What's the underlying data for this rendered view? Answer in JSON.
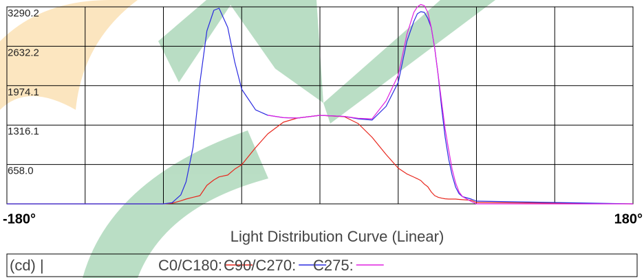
{
  "chart_data": {
    "type": "line",
    "title": "Light Distribution Curve (Linear)",
    "unit_label": "(cd) |",
    "x": [
      -180,
      -90,
      -85,
      -80,
      -77,
      -73,
      -69,
      -65,
      -61,
      -58,
      -53,
      -49,
      -45,
      -37,
      -30,
      -21,
      -13,
      0,
      14,
      22,
      30,
      38,
      45,
      50,
      54,
      56,
      58,
      60,
      62,
      64,
      66,
      68,
      70,
      72,
      74,
      76,
      78,
      80,
      82,
      87,
      90,
      180
    ],
    "series": [
      {
        "name": "C0/C180:",
        "color": "#e8261c",
        "values": [
          0,
          0,
          10,
          50,
          80,
          110,
          138,
          310,
          400,
          450,
          481,
          580,
          653,
          940,
          1169,
          1364,
          1433,
          1479,
          1456,
          1341,
          1112,
          825,
          596,
          500,
          447,
          420,
          390,
          330,
          287,
          200,
          138,
          110,
          95,
          85,
          80,
          80,
          80,
          75,
          70,
          60,
          23,
          0
        ]
      },
      {
        "name": "C90/C270:",
        "color": "#2a2ae0",
        "values": [
          0,
          0,
          20,
          150,
          367,
          940,
          2029,
          2889,
          3233,
          3267,
          2946,
          2373,
          1914,
          1570,
          1480,
          1440,
          1433,
          1479,
          1460,
          1420,
          1400,
          1628,
          2029,
          2717,
          3050,
          3176,
          3210,
          3199,
          3100,
          2946,
          2600,
          2144,
          1600,
          1112,
          750,
          481,
          280,
          170,
          120,
          80,
          46,
          0
        ]
      },
      {
        "name": "C275:",
        "color": "#e020e0",
        "values": [
          null,
          null,
          null,
          null,
          null,
          null,
          null,
          null,
          null,
          null,
          null,
          null,
          null,
          null,
          1480,
          1440,
          1433,
          1479,
          1460,
          1430,
          1420,
          1720,
          2150,
          2830,
          3200,
          3290,
          3330,
          3310,
          3200,
          2950,
          2600,
          2150,
          1700,
          1250,
          900,
          580,
          350,
          200,
          120,
          40,
          0,
          0
        ]
      }
    ],
    "xlim": [
      -180,
      180
    ],
    "xticks": [
      {
        "value": -180,
        "label": "-180°"
      },
      {
        "value": 180,
        "label": "180°"
      }
    ],
    "xgrid": [
      -135,
      -90,
      -45,
      0,
      45,
      90,
      135
    ],
    "ylim": [
      0,
      3290.2
    ],
    "yticks": [
      {
        "value": 658.0,
        "label": "658.0"
      },
      {
        "value": 1316.1,
        "label": "1316.1"
      },
      {
        "value": 1974.1,
        "label": "1974.1"
      },
      {
        "value": 2632.2,
        "label": "2632.2"
      },
      {
        "value": 3290.2,
        "label": "3290.2"
      }
    ],
    "grid": true
  }
}
